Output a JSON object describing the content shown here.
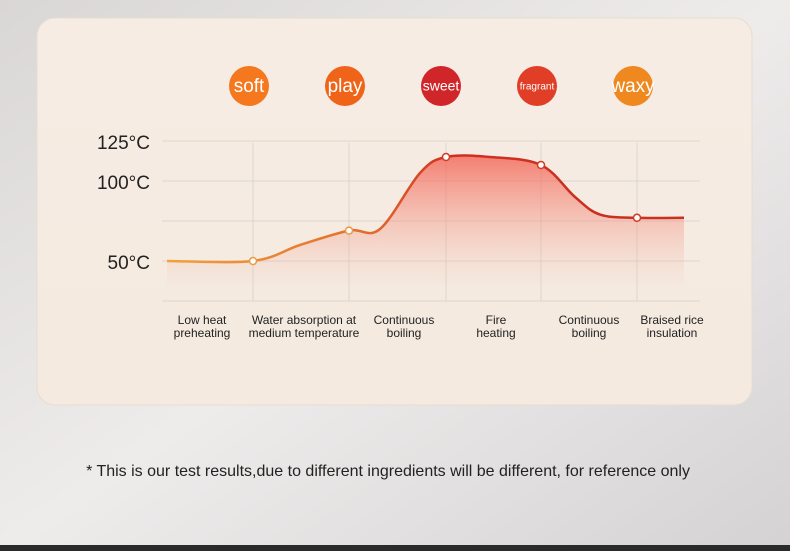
{
  "chart_data": {
    "type": "line",
    "flavors": [
      {
        "text": "soft",
        "color": "#f5781e"
      },
      {
        "text": "play",
        "color": "#ef6418"
      },
      {
        "text": "sweet",
        "color": "#d0262a"
      },
      {
        "text": "fragrant",
        "color": "#e03e26"
      },
      {
        "text": "waxy",
        "color": "#f08820"
      }
    ],
    "ylim": [
      25,
      125
    ],
    "yticks": [
      {
        "value": 125,
        "label": "125°C"
      },
      {
        "value": 100,
        "label": "100°C"
      },
      {
        "value": 50,
        "label": "50°C"
      }
    ],
    "grid": true,
    "stages": [
      [
        "Low heat",
        "preheating"
      ],
      [
        "Water absorption at",
        "medium temperature"
      ],
      [
        "Continuous",
        "boiling"
      ],
      [
        "Fire",
        "heating"
      ],
      [
        "Continuous",
        "boiling"
      ],
      [
        "Braised rice",
        "insulation"
      ]
    ],
    "series": [
      {
        "color": "#d23a22",
        "values": [
          50,
          50,
          60,
          69,
          70,
          105,
          115,
          115,
          110,
          90,
          79,
          77,
          77
        ]
      }
    ],
    "note": "* This is our test results,due to different ingredients will be different, for reference only"
  }
}
